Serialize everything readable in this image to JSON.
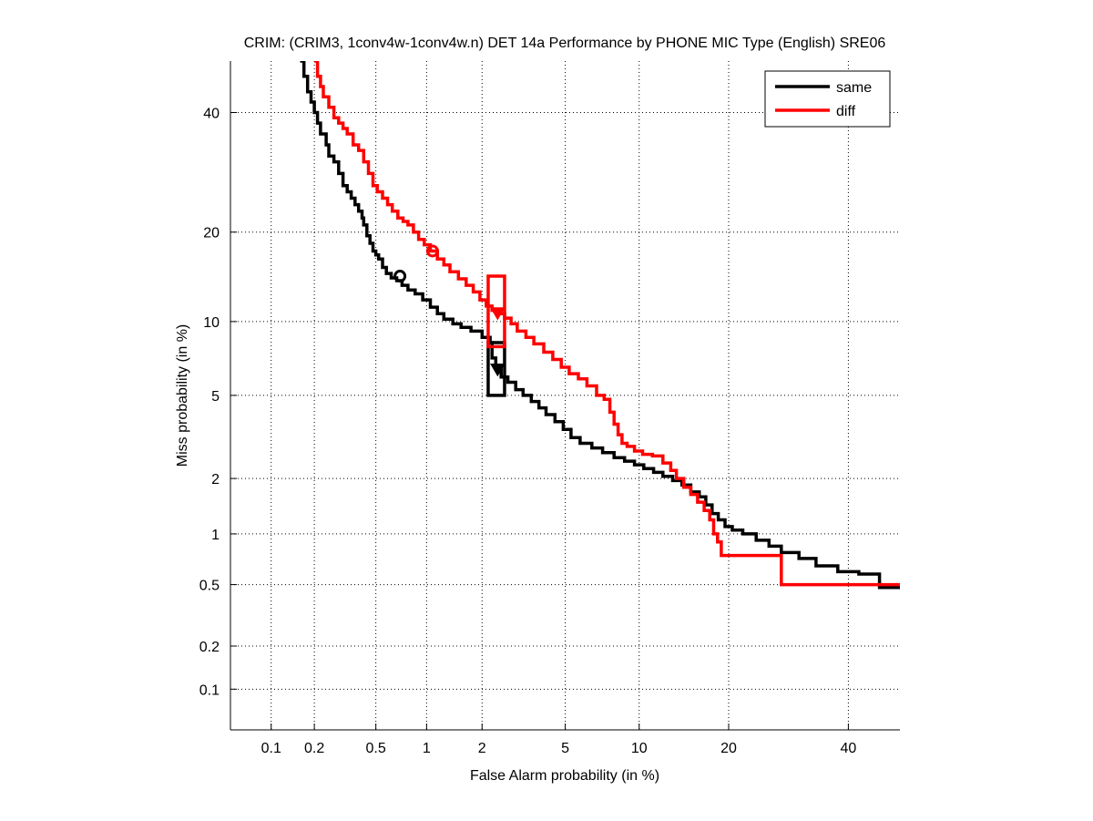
{
  "chart_data": {
    "type": "line",
    "scale": "normal-deviate (DET)",
    "title": "CRIM: (CRIM3, 1conv4w-1conv4w.n) DET 14a Performance by PHONE MIC Type (English) SRE06",
    "xlabel": "False Alarm probability (in %)",
    "ylabel": "Miss probability (in %)",
    "xlim": [
      0.05,
      50
    ],
    "ylim": [
      0.05,
      50
    ],
    "xticks": [
      0.1,
      0.2,
      0.5,
      1,
      2,
      5,
      10,
      20,
      40
    ],
    "xtick_labels": [
      "0.1",
      "0.2",
      "0.5",
      "1",
      "2",
      "5",
      "10",
      "20",
      "40"
    ],
    "yticks": [
      0.1,
      0.2,
      0.5,
      1,
      2,
      5,
      10,
      20,
      40
    ],
    "ytick_labels": [
      "0.1",
      "0.2",
      "0.5",
      "1",
      "2",
      "5",
      "10",
      "20",
      "40"
    ],
    "grid": true,
    "legend": {
      "placement": "top-right",
      "entries": [
        "same",
        "diff"
      ]
    },
    "series": [
      {
        "name": "same",
        "color": "#000000",
        "x": [
          0.16,
          0.17,
          0.18,
          0.19,
          0.2,
          0.21,
          0.22,
          0.24,
          0.25,
          0.27,
          0.29,
          0.31,
          0.33,
          0.35,
          0.37,
          0.39,
          0.41,
          0.42,
          0.44,
          0.46,
          0.48,
          0.5,
          0.52,
          0.55,
          0.58,
          0.62,
          0.67,
          0.72,
          0.78,
          0.86,
          0.95,
          1.05,
          1.15,
          1.25,
          1.4,
          1.55,
          1.75,
          2.0,
          2.2,
          2.25,
          2.35,
          2.5,
          2.7,
          2.95,
          3.2,
          3.5,
          3.8,
          4.1,
          4.5,
          4.9,
          5.3,
          5.8,
          6.5,
          7.2,
          8.0,
          8.8,
          9.6,
          10.4,
          11.3,
          12.2,
          13.2,
          14.2,
          15.2,
          16.2,
          17.0,
          17.8,
          18.6,
          19.5,
          20.5,
          22.0,
          24.0,
          26.0,
          28.0,
          31.0,
          34.0,
          38.0,
          42.0,
          46.0,
          50.0
        ],
        "y": [
          50,
          47,
          44,
          42,
          40,
          38,
          36,
          34,
          32,
          31,
          29,
          27,
          26,
          25,
          24,
          23,
          22,
          21,
          19.5,
          18.5,
          17.5,
          17,
          16.5,
          15.5,
          14.8,
          14.3,
          14.0,
          13.5,
          13.0,
          12.6,
          12.0,
          11.3,
          10.7,
          10.2,
          9.8,
          9.5,
          9.2,
          8.7,
          8.3,
          7.2,
          6.5,
          6.0,
          5.7,
          5.3,
          5.0,
          4.7,
          4.4,
          4.1,
          3.8,
          3.5,
          3.2,
          3.0,
          2.85,
          2.7,
          2.55,
          2.45,
          2.35,
          2.25,
          2.15,
          2.05,
          1.95,
          1.85,
          1.7,
          1.6,
          1.45,
          1.3,
          1.2,
          1.1,
          1.05,
          1.0,
          0.92,
          0.85,
          0.78,
          0.72,
          0.65,
          0.6,
          0.58,
          0.48,
          0.48
        ]
      },
      {
        "name": "diff",
        "color": "#ff0000",
        "x": [
          0.2,
          0.21,
          0.22,
          0.23,
          0.25,
          0.27,
          0.29,
          0.31,
          0.33,
          0.36,
          0.39,
          0.42,
          0.45,
          0.48,
          0.51,
          0.55,
          0.59,
          0.63,
          0.68,
          0.73,
          0.78,
          0.84,
          0.9,
          0.97,
          1.05,
          1.15,
          1.25,
          1.35,
          1.5,
          1.65,
          1.8,
          1.95,
          2.1,
          2.25,
          2.4,
          2.6,
          2.8,
          3.0,
          3.3,
          3.6,
          4.0,
          4.4,
          4.8,
          5.2,
          5.7,
          6.2,
          6.8,
          7.3,
          7.7,
          8.0,
          8.3,
          8.6,
          9.0,
          9.6,
          10.3,
          11.2,
          12.2,
          13.0,
          13.6,
          14.4,
          15.2,
          16.0,
          16.8,
          17.5,
          18.0,
          18.5,
          19.0,
          21.0,
          24.0,
          27.0,
          28.0,
          32.0,
          38.0,
          45.0,
          50.0
        ],
        "y": [
          50,
          47,
          45,
          43,
          41,
          39,
          38,
          37,
          36,
          34,
          33,
          31,
          29,
          27,
          26,
          25,
          24,
          23,
          22,
          21.5,
          21,
          20,
          19,
          18.3,
          17.5,
          16.5,
          15.8,
          15.0,
          14.2,
          13.5,
          12.8,
          12.0,
          11.4,
          11.0,
          10.7,
          10.3,
          9.8,
          9.2,
          8.7,
          8.2,
          7.6,
          7.1,
          6.6,
          6.2,
          5.9,
          5.5,
          5.0,
          4.8,
          4.2,
          3.7,
          3.3,
          3.0,
          2.9,
          2.75,
          2.65,
          2.6,
          2.4,
          2.2,
          2.0,
          1.8,
          1.65,
          1.5,
          1.35,
          1.2,
          1.0,
          0.9,
          0.75,
          0.75,
          0.75,
          0.75,
          0.5,
          0.5,
          0.5,
          0.5,
          0.5
        ]
      }
    ],
    "markers": [
      {
        "series": "same",
        "kind": "circle",
        "label": "min DCF",
        "x": 0.7,
        "y": 14.5
      },
      {
        "series": "diff",
        "kind": "circle",
        "label": "min DCF",
        "x": 1.08,
        "y": 17.5
      },
      {
        "series": "same",
        "kind": "triangle",
        "label": "actual DCF",
        "x": 2.4,
        "y": 6.5
      },
      {
        "series": "diff",
        "kind": "triangle",
        "label": "actual DCF",
        "x": 2.4,
        "y": 10.8
      }
    ],
    "confidence_boxes": [
      {
        "series": "same",
        "x_range": [
          2.15,
          2.6
        ],
        "y_range": [
          5.0,
          8.3
        ]
      },
      {
        "series": "diff",
        "x_range": [
          2.15,
          2.6
        ],
        "y_range": [
          8.0,
          14.5
        ]
      }
    ]
  }
}
